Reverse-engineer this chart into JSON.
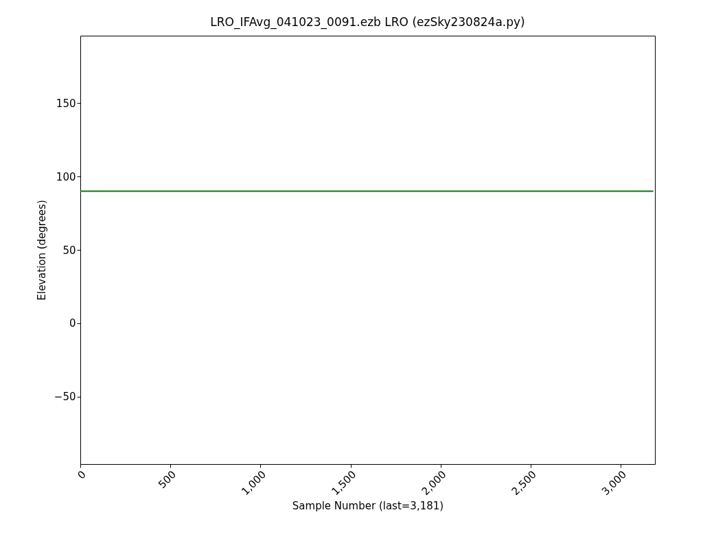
{
  "chart_data": {
    "type": "line",
    "title": "LRO_IFAvg_041023_0091.ezb            LRO          (ezSky230824a.py)",
    "xlabel": "Sample Number (last=3,181)",
    "ylabel": "Elevation (degrees)",
    "x": [
      0,
      3181
    ],
    "series": [
      {
        "color": "#008000",
        "values": [
          90,
          90
        ]
      }
    ],
    "xlim": [
      0,
      3190
    ],
    "ylim": [
      -96,
      196
    ],
    "xticks": [
      0,
      500,
      {
        "value": 1000,
        "label": "1,000"
      },
      {
        "value": 1500,
        "label": "1,500"
      },
      {
        "value": 2000,
        "label": "2,000"
      },
      {
        "value": 2500,
        "label": "2,500"
      },
      {
        "value": 3000,
        "label": "3,000"
      }
    ],
    "yticks": [
      {
        "value": -50,
        "label": "−50"
      },
      0,
      50,
      100,
      150
    ],
    "grid": false
  }
}
